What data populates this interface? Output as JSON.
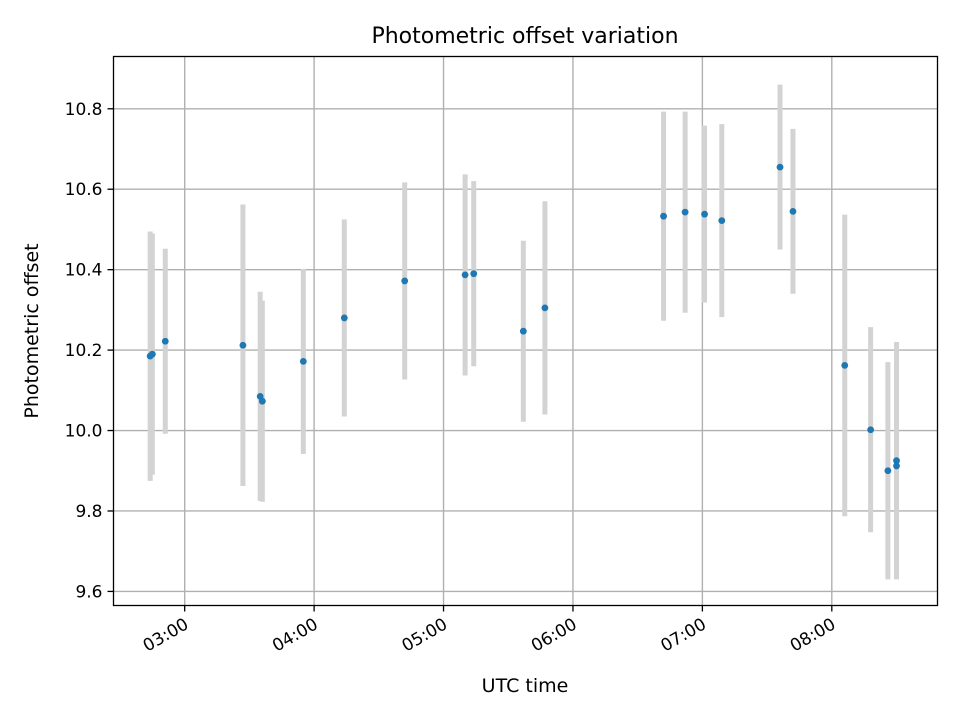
{
  "chart_data": {
    "type": "scatter",
    "title": "Photometric offset variation",
    "xlabel": "UTC time",
    "ylabel": "Photometric offset",
    "x_tick_labels": [
      "03:00",
      "04:00",
      "05:00",
      "06:00",
      "07:00",
      "08:00"
    ],
    "y_tick_labels": [
      "9.6",
      "9.8",
      "10.0",
      "10.2",
      "10.4",
      "10.6",
      "10.8"
    ],
    "xlim": [
      "02:27",
      "08:49"
    ],
    "ylim": [
      9.565,
      10.93
    ],
    "grid": true,
    "point_color": "#1f77b4",
    "errorbar_color": "#d3d3d3",
    "series": [
      {
        "points": [
          {
            "x": "02:44",
            "y": 10.185,
            "yerr": 0.31
          },
          {
            "x": "02:45",
            "y": 10.19,
            "yerr": 0.3
          },
          {
            "x": "02:51",
            "y": 10.222,
            "yerr": 0.23
          },
          {
            "x": "03:27",
            "y": 10.212,
            "yerr": 0.35
          },
          {
            "x": "03:35",
            "y": 10.085,
            "yerr": 0.26
          },
          {
            "x": "03:36",
            "y": 10.073,
            "yerr": 0.25
          },
          {
            "x": "03:55",
            "y": 10.172,
            "yerr": 0.23
          },
          {
            "x": "04:14",
            "y": 10.28,
            "yerr": 0.245
          },
          {
            "x": "04:42",
            "y": 10.372,
            "yerr": 0.245
          },
          {
            "x": "05:10",
            "y": 10.387,
            "yerr": 0.25
          },
          {
            "x": "05:14",
            "y": 10.39,
            "yerr": 0.23
          },
          {
            "x": "05:37",
            "y": 10.247,
            "yerr": 0.225
          },
          {
            "x": "05:47",
            "y": 10.305,
            "yerr": 0.265
          },
          {
            "x": "06:42",
            "y": 10.533,
            "yerr": 0.26
          },
          {
            "x": "06:52",
            "y": 10.543,
            "yerr": 0.25
          },
          {
            "x": "07:01",
            "y": 10.538,
            "yerr": 0.22
          },
          {
            "x": "07:09",
            "y": 10.522,
            "yerr": 0.24
          },
          {
            "x": "07:36",
            "y": 10.655,
            "yerr": 0.205
          },
          {
            "x": "07:42",
            "y": 10.545,
            "yerr": 0.205
          },
          {
            "x": "08:06",
            "y": 10.162,
            "yerr": 0.375
          },
          {
            "x": "08:18",
            "y": 10.002,
            "yerr": 0.255
          },
          {
            "x": "08:26",
            "y": 9.9,
            "yerr": 0.27
          },
          {
            "x": "08:30",
            "y": 9.912,
            "yerr": 0.28
          },
          {
            "x": "08:30",
            "y": 9.925,
            "yerr": 0.295
          }
        ]
      }
    ]
  }
}
